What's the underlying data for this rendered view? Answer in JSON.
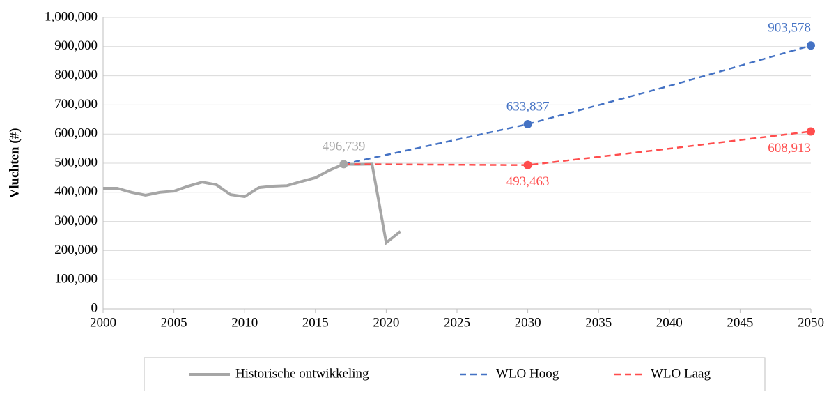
{
  "chart_data": {
    "type": "line",
    "y_label": "Vluchten (#)",
    "xlim": [
      2000,
      2050
    ],
    "xticks": [
      2000,
      2005,
      2010,
      2015,
      2020,
      2025,
      2030,
      2035,
      2040,
      2045,
      2050
    ],
    "ylim": [
      0,
      1000000
    ],
    "yticks": [
      0,
      {
        "value": 100000,
        "label": "100,000"
      },
      {
        "value": 200000,
        "label": "200,000"
      },
      {
        "value": 300000,
        "label": "300,000"
      },
      {
        "value": 400000,
        "label": "400,000"
      },
      {
        "value": 500000,
        "label": "500,000"
      },
      {
        "value": 600000,
        "label": "600,000"
      },
      {
        "value": 700000,
        "label": "700,000"
      },
      {
        "value": 800000,
        "label": "800,000"
      },
      {
        "value": 900000,
        "label": "900,000"
      },
      {
        "value": 1000000,
        "label": "1,000,000"
      }
    ],
    "grid": true,
    "legend": "bottom",
    "series": [
      {
        "name": "Historische ontwikkeling",
        "color": "#a6a6a6",
        "dash": "solid",
        "x": [
          2000,
          2001,
          2002,
          2003,
          2004,
          2005,
          2006,
          2007,
          2008,
          2009,
          2010,
          2011,
          2012,
          2013,
          2014,
          2015,
          2016,
          2017,
          2018,
          2019,
          2020,
          2021
        ],
        "values": [
          414000,
          414000,
          400000,
          390000,
          400000,
          404000,
          421000,
          435000,
          426000,
          392000,
          385000,
          416000,
          421000,
          423000,
          437000,
          450000,
          476000,
          496739,
          496000,
          497000,
          227000,
          266000
        ],
        "value_labels": [
          null,
          null,
          null,
          null,
          null,
          null,
          null,
          null,
          null,
          null,
          null,
          null,
          null,
          null,
          null,
          null,
          null,
          "496,739",
          null,
          null,
          null,
          null
        ]
      },
      {
        "name": "WLO Hoog",
        "color": "#4472c4",
        "dash": "dashed",
        "x": [
          2017,
          2030,
          2040,
          2050
        ],
        "values": [
          496739,
          633837,
          765000,
          903578
        ],
        "value_labels": [
          null,
          "633,837",
          null,
          "903,578"
        ]
      },
      {
        "name": "WLO Laag",
        "color": "#ff4d4d",
        "dash": "dashed",
        "x": [
          2017,
          2030,
          2040,
          2050
        ],
        "values": [
          496739,
          493463,
          550000,
          608913
        ],
        "value_labels": [
          null,
          "493,463",
          null,
          "608,913"
        ]
      }
    ]
  }
}
